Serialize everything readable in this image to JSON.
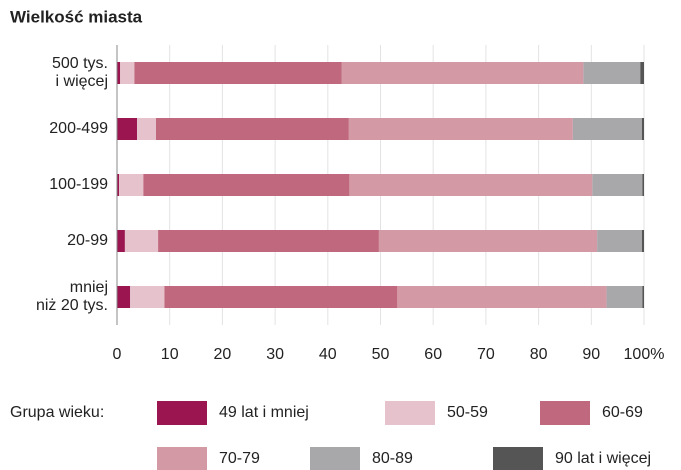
{
  "chart_data": {
    "type": "stacked-barh",
    "title": "Wielkość miasta",
    "categories": [
      "500 tys.\ni więcej",
      "200-499",
      "100-199",
      "20-99",
      "mniej\nniż 20 tys."
    ],
    "series": [
      {
        "name": "49 lat i mniej",
        "color": "#9b1650",
        "values": [
          0.6,
          3.8,
          0.4,
          1.5,
          2.5
        ]
      },
      {
        "name": "50-59",
        "color": "#e6c3cc",
        "values": [
          2.7,
          3.6,
          4.6,
          6.3,
          6.5
        ]
      },
      {
        "name": "60-69",
        "color": "#c0697e",
        "values": [
          39.3,
          36.6,
          39.1,
          41.9,
          44.2
        ]
      },
      {
        "name": "70-79",
        "color": "#d39aa6",
        "values": [
          45.9,
          42.5,
          46.1,
          41.4,
          39.7
        ]
      },
      {
        "name": "80-89",
        "color": "#a8a8ab",
        "values": [
          10.8,
          13.1,
          9.5,
          8.5,
          6.8
        ]
      },
      {
        "name": "90 lat i więcej",
        "color": "#555555",
        "values": [
          0.7,
          0.4,
          0.3,
          0.4,
          0.3
        ]
      }
    ],
    "xlim": [
      0,
      100
    ],
    "xticks": [
      0,
      10,
      20,
      30,
      40,
      50,
      60,
      70,
      80,
      90,
      {
        "value": 100,
        "label": "100%"
      }
    ],
    "legend_title": "Grupa wieku:",
    "legend": "bottom",
    "grid": true
  }
}
